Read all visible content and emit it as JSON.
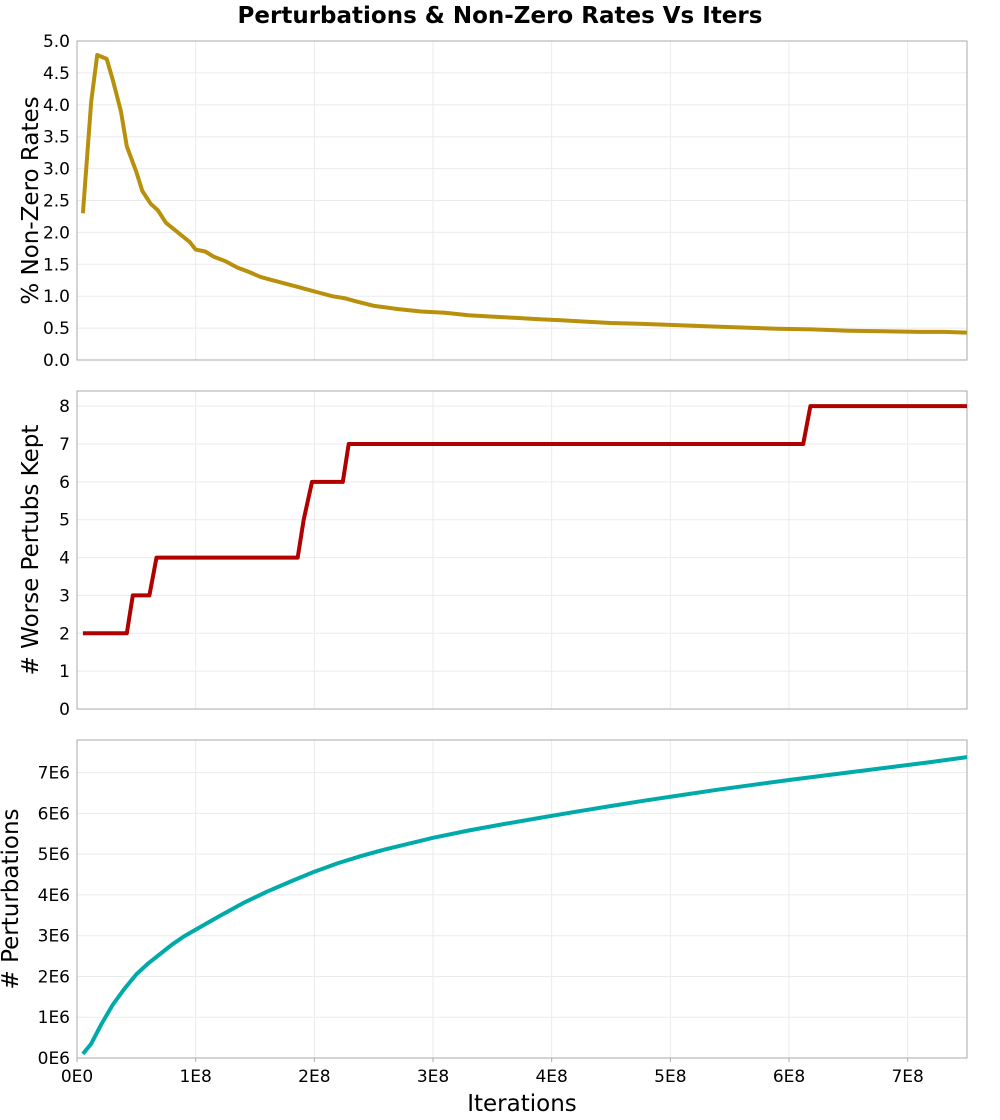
{
  "figure": {
    "title": "Perturbations & Non-Zero Rates Vs Iters",
    "xlabel": "Iterations",
    "x_tick_labels": [
      "0E0",
      "1E8",
      "2E8",
      "3E8",
      "4E8",
      "5E8",
      "6E8",
      "7E8"
    ]
  },
  "colors": {
    "nonzero": "#b8900c",
    "worse": "#b00000",
    "perturbations": "#00aaaa",
    "grid": "#ebebeb",
    "frame": "#aaaaaa"
  },
  "chart_data": [
    {
      "type": "line",
      "name": "nonzero-rates",
      "title": "Perturbations & Non-Zero Rates Vs Iters",
      "xlabel": "",
      "ylabel": "% Non-Zero Rates",
      "xlim": [
        0,
        750000000
      ],
      "ylim": [
        0,
        5
      ],
      "y_ticks": [
        0,
        0.5,
        1,
        1.5,
        2,
        2.5,
        3,
        3.5,
        4,
        4.5,
        5
      ],
      "y_tick_labels": [
        "0.0",
        "0.5",
        "1.0",
        "1.5",
        "2.0",
        "2.5",
        "3.0",
        "3.5",
        "4.0",
        "4.5",
        "5.0"
      ],
      "grid": true,
      "series": [
        {
          "name": "% Non-Zero Rates",
          "x": [
            5000000,
            12000000,
            17000000,
            25000000,
            30000000,
            37000000,
            42000000,
            50000000,
            55000000,
            62000000,
            68000000,
            75000000,
            85000000,
            95000000,
            100000000,
            108000000,
            115000000,
            125000000,
            135000000,
            145000000,
            155000000,
            165000000,
            175000000,
            185000000,
            195000000,
            205000000,
            215000000,
            225000000,
            235000000,
            250000000,
            270000000,
            290000000,
            310000000,
            330000000,
            350000000,
            370000000,
            390000000,
            410000000,
            430000000,
            450000000,
            470000000,
            500000000,
            530000000,
            560000000,
            590000000,
            620000000,
            650000000,
            680000000,
            710000000,
            730000000,
            750000000
          ],
          "values": [
            2.3,
            4.05,
            4.78,
            4.72,
            4.4,
            3.9,
            3.35,
            2.95,
            2.65,
            2.45,
            2.35,
            2.15,
            2.0,
            1.85,
            1.73,
            1.7,
            1.62,
            1.55,
            1.45,
            1.38,
            1.3,
            1.25,
            1.2,
            1.15,
            1.1,
            1.05,
            1.0,
            0.97,
            0.92,
            0.85,
            0.8,
            0.76,
            0.74,
            0.7,
            0.68,
            0.66,
            0.64,
            0.62,
            0.6,
            0.58,
            0.57,
            0.55,
            0.53,
            0.51,
            0.49,
            0.48,
            0.46,
            0.45,
            0.44,
            0.44,
            0.43
          ]
        }
      ]
    },
    {
      "type": "line",
      "name": "worse-perturbs",
      "xlabel": "",
      "ylabel": "# Worse Pertubs Kept",
      "xlim": [
        0,
        750000000
      ],
      "ylim": [
        0,
        8.4
      ],
      "y_ticks": [
        0,
        1,
        2,
        3,
        4,
        5,
        6,
        7,
        8
      ],
      "y_tick_labels": [
        "0",
        "1",
        "2",
        "3",
        "4",
        "5",
        "6",
        "7",
        "8"
      ],
      "grid": true,
      "series": [
        {
          "name": "# Worse Pertubs Kept",
          "x": [
            5000000,
            42000000,
            47000000,
            61000000,
            67000000,
            186000000,
            191000000,
            198000000,
            224000000,
            229000000,
            612000000,
            618000000,
            750000000
          ],
          "values": [
            2,
            2,
            3,
            3,
            4,
            4,
            5,
            6,
            6,
            7,
            7,
            8,
            8
          ]
        }
      ]
    },
    {
      "type": "line",
      "name": "perturbations",
      "xlabel": "Iterations",
      "ylabel": "# Perturbations",
      "xlim": [
        0,
        750000000
      ],
      "ylim": [
        0,
        7800000
      ],
      "y_ticks": [
        0,
        1000000,
        2000000,
        3000000,
        4000000,
        5000000,
        6000000,
        7000000
      ],
      "y_tick_labels": [
        "0E6",
        "1E6",
        "2E6",
        "3E6",
        "4E6",
        "5E6",
        "6E6",
        "7E6"
      ],
      "x_ticks": [
        0,
        100000000,
        200000000,
        300000000,
        400000000,
        500000000,
        600000000,
        700000000
      ],
      "x_tick_labels": [
        "0E0",
        "1E8",
        "2E8",
        "3E8",
        "4E8",
        "5E8",
        "6E8",
        "7E8"
      ],
      "grid": true,
      "series": [
        {
          "name": "# Perturbations",
          "x": [
            5000000,
            12000000,
            20000000,
            30000000,
            40000000,
            50000000,
            60000000,
            70000000,
            80000000,
            90000000,
            100000000,
            120000000,
            140000000,
            160000000,
            180000000,
            200000000,
            220000000,
            240000000,
            260000000,
            280000000,
            300000000,
            330000000,
            360000000,
            390000000,
            420000000,
            450000000,
            480000000,
            510000000,
            540000000,
            570000000,
            600000000,
            630000000,
            660000000,
            690000000,
            720000000,
            750000000
          ],
          "values": [
            100000,
            350000,
            800000,
            1300000,
            1700000,
            2050000,
            2320000,
            2550000,
            2780000,
            2980000,
            3150000,
            3480000,
            3800000,
            4080000,
            4330000,
            4570000,
            4780000,
            4960000,
            5120000,
            5260000,
            5400000,
            5580000,
            5740000,
            5890000,
            6040000,
            6180000,
            6320000,
            6450000,
            6580000,
            6700000,
            6820000,
            6930000,
            7040000,
            7150000,
            7260000,
            7380000
          ]
        }
      ]
    }
  ]
}
